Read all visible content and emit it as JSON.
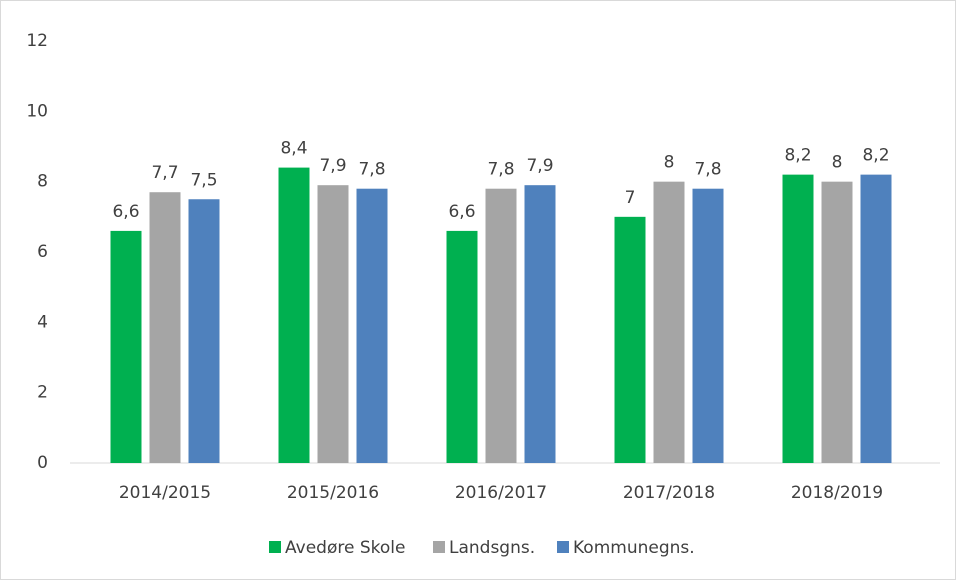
{
  "chart_data": {
    "type": "bar",
    "categories": [
      "2014/2015",
      "2015/2016",
      "2016/2017",
      "2017/2018",
      "2018/2019"
    ],
    "series": [
      {
        "name": "Avedøre Skole",
        "color": "#00b050",
        "values": [
          6.6,
          8.4,
          6.6,
          7,
          8.2
        ],
        "value_labels": [
          "6,6",
          "8,4",
          "6,6",
          "7",
          "8,2"
        ]
      },
      {
        "name": "Landsgns.",
        "color": "#a5a5a5",
        "values": [
          7.7,
          7.9,
          7.8,
          8,
          8
        ],
        "value_labels": [
          "7,7",
          "7,9",
          "7,8",
          "8",
          "8"
        ]
      },
      {
        "name": "Kommunegns.",
        "color": "#4f81bd",
        "values": [
          7.5,
          7.8,
          7.9,
          7.8,
          8.2
        ],
        "value_labels": [
          "7,5",
          "7,8",
          "7,9",
          "7,8",
          "8,2"
        ]
      }
    ],
    "ylim": [
      0,
      12
    ],
    "yticks": [
      0,
      2,
      4,
      6,
      8,
      10,
      12
    ],
    "grid": false,
    "legend": "bottom"
  }
}
